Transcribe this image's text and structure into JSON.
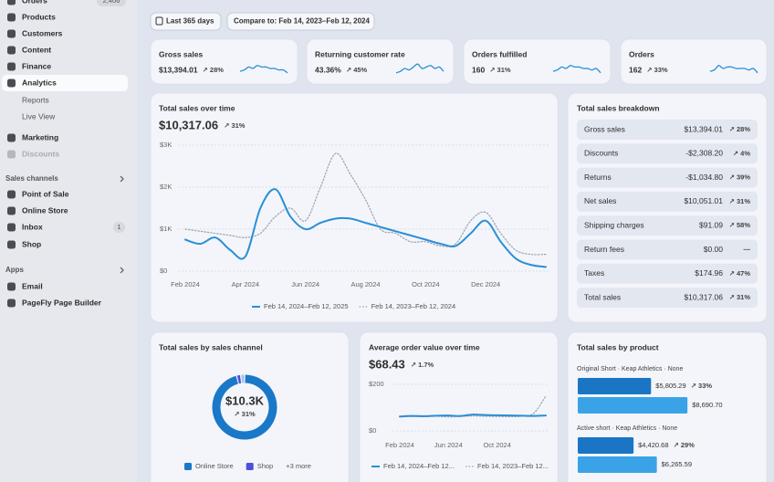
{
  "sidebar": {
    "items": [
      {
        "label": "Orders",
        "badge": "2,406"
      },
      {
        "label": "Products"
      },
      {
        "label": "Customers"
      },
      {
        "label": "Content"
      },
      {
        "label": "Finance"
      },
      {
        "label": "Analytics"
      },
      {
        "label": "Reports"
      },
      {
        "label": "Live View"
      },
      {
        "label": "Marketing"
      },
      {
        "label": "Discounts"
      }
    ],
    "sections": [
      {
        "title": "Sales channels",
        "items": [
          {
            "label": "Point of Sale"
          },
          {
            "label": "Online Store"
          },
          {
            "label": "Inbox",
            "badge": "1"
          },
          {
            "label": "Shop"
          }
        ]
      },
      {
        "title": "Apps",
        "items": [
          {
            "label": "Email"
          },
          {
            "label": "PageFly Page Builder"
          }
        ]
      }
    ]
  },
  "toolbar": {
    "date_range": "Last 365 days",
    "compare": "Compare to: Feb 14, 2023–Feb 12, 2024"
  },
  "sparkline_ylim": [
    0,
    10
  ],
  "kpis": [
    {
      "title": "Gross sales",
      "value": "$13,394.01",
      "change": "↗ 28%",
      "spark": [
        3,
        4,
        6,
        5,
        7,
        6,
        6,
        5,
        5,
        4,
        4,
        2
      ]
    },
    {
      "title": "Returning customer rate",
      "value": "43.36%",
      "change": "↗ 45%",
      "spark": [
        2,
        3,
        5,
        4,
        6,
        8,
        5,
        6,
        7,
        5,
        6,
        3
      ]
    },
    {
      "title": "Orders fulfilled",
      "value": "160",
      "change": "↗ 31%",
      "spark": [
        3,
        4,
        6,
        5,
        7,
        6,
        6,
        5,
        5,
        4,
        5,
        2
      ]
    },
    {
      "title": "Orders",
      "value": "162",
      "change": "↗ 33%",
      "spark": [
        3,
        4,
        7,
        5,
        6,
        6,
        5,
        5,
        5,
        4,
        5,
        2
      ]
    }
  ],
  "charts": {
    "sales_over_time": {
      "type": "line",
      "title": "Total sales over time",
      "total": "$10,317.06",
      "change": "↗ 31%",
      "x": [
        0,
        0.5,
        1,
        1.5,
        2,
        2.5,
        3,
        3.5,
        4,
        4.5,
        5,
        5.5,
        6,
        6.5,
        7,
        7.5,
        8,
        8.5,
        9,
        9.5,
        10,
        10.5,
        11,
        11.5,
        12
      ],
      "xlim": [
        0,
        12
      ],
      "xticks": [
        {
          "value": 0,
          "label": "Feb 2024"
        },
        {
          "value": 2,
          "label": "Apr 2024"
        },
        {
          "value": 4,
          "label": "Jun 2024"
        },
        {
          "value": 6,
          "label": "Aug 2024"
        },
        {
          "value": 8,
          "label": "Oct 2024"
        },
        {
          "value": 10,
          "label": "Dec 2024"
        }
      ],
      "ylim": [
        0,
        3000
      ],
      "yticks": [
        {
          "value": 0,
          "label": "$0"
        },
        {
          "value": 1000,
          "label": "$1K"
        },
        {
          "value": 2000,
          "label": "$2K"
        },
        {
          "value": 3000,
          "label": "$3K"
        }
      ],
      "grid": true,
      "series": [
        {
          "name": "Feb 14, 2024–Feb 12, 2025",
          "color": "#2a8fd6",
          "style": "solid",
          "values": [
            750,
            650,
            800,
            500,
            350,
            1500,
            1950,
            1300,
            1000,
            1150,
            1250,
            1250,
            1150,
            1050,
            950,
            850,
            750,
            650,
            600,
            900,
            1200,
            700,
            300,
            150,
            100
          ]
        },
        {
          "name": "Feb 14, 2023–Feb 12, 2024",
          "color": "#9aa3b0",
          "style": "dotted",
          "values": [
            1000,
            950,
            900,
            850,
            800,
            900,
            1300,
            1500,
            1200,
            2000,
            2800,
            2300,
            1700,
            1000,
            900,
            700,
            700,
            600,
            650,
            1200,
            1400,
            900,
            500,
            400,
            400
          ]
        }
      ]
    },
    "sales_breakdown": {
      "title": "Total sales breakdown",
      "rows": [
        {
          "label": "Gross sales",
          "value": "$13,394.01",
          "change": "↗ 28%"
        },
        {
          "label": "Discounts",
          "value": "-$2,308.20",
          "change": "↗ 4%"
        },
        {
          "label": "Returns",
          "value": "-$1,034.80",
          "change": "↗ 39%"
        },
        {
          "label": "Net sales",
          "value": "$10,051.01",
          "change": "↗ 31%"
        },
        {
          "label": "Shipping charges",
          "value": "$91.09",
          "change": "↗ 58%"
        },
        {
          "label": "Return fees",
          "value": "$0.00",
          "change": "—"
        },
        {
          "label": "Taxes",
          "value": "$174.96",
          "change": "↗ 47%"
        },
        {
          "label": "Total sales",
          "value": "$10,317.06",
          "change": "↗ 31%"
        }
      ]
    },
    "sales_by_channel": {
      "type": "donut",
      "title": "Total sales by sales channel",
      "total": "$10.3K",
      "change": "↗ 31%",
      "slices": [
        {
          "name": "Online Store",
          "color": "#1a78c8",
          "value": 96
        },
        {
          "name": "Shop",
          "color": "#4b4fdc",
          "value": 2
        },
        {
          "name": "+3 more",
          "color": "#9ec5ea",
          "value": 2
        }
      ]
    },
    "average_order_value": {
      "type": "line",
      "title": "Average order value over time",
      "total": "$68.43",
      "change": "↗ 1.7%",
      "x": [
        0,
        1,
        2,
        3,
        4,
        5,
        6,
        7,
        8,
        9,
        10,
        11,
        12
      ],
      "xlim": [
        0,
        12
      ],
      "xticks": [
        {
          "value": 0,
          "label": "Feb 2024"
        },
        {
          "value": 4,
          "label": "Jun 2024"
        },
        {
          "value": 8,
          "label": "Oct 2024"
        }
      ],
      "ylim": [
        0,
        200
      ],
      "yticks": [
        {
          "value": 0,
          "label": "$0"
        },
        {
          "value": 200,
          "label": "$200"
        }
      ],
      "grid": true,
      "series": [
        {
          "name": "Feb 14, 2024–Feb 12...",
          "color": "#2a8fd6",
          "style": "solid",
          "values": [
            62,
            64,
            63,
            65,
            66,
            64,
            70,
            68,
            67,
            66,
            65,
            64,
            66
          ]
        },
        {
          "name": "Feb 14, 2023–Feb 12...",
          "color": "#9aa3b0",
          "style": "dotted",
          "values": [
            60,
            62,
            61,
            63,
            60,
            62,
            64,
            63,
            62,
            61,
            63,
            75,
            150
          ]
        }
      ]
    },
    "sales_by_product": {
      "type": "bar",
      "title": "Total sales by product",
      "xlim": [
        0,
        9400
      ],
      "products": [
        {
          "name": "Original Short · Keap Athletics · None",
          "value": 5805.29,
          "value_label": "$5,805.29",
          "change": "↗ 33%",
          "previous": 8690.7,
          "previous_label": "$8,690.70"
        },
        {
          "name": "Active short · Keap Athletics · None",
          "value": 4420.68,
          "value_label": "$4,420.68",
          "change": "↗ 29%",
          "previous": 6265.59,
          "previous_label": "$6,265.59"
        }
      ],
      "colors": [
        "#1a75c4",
        "#3aa3e8"
      ]
    }
  }
}
